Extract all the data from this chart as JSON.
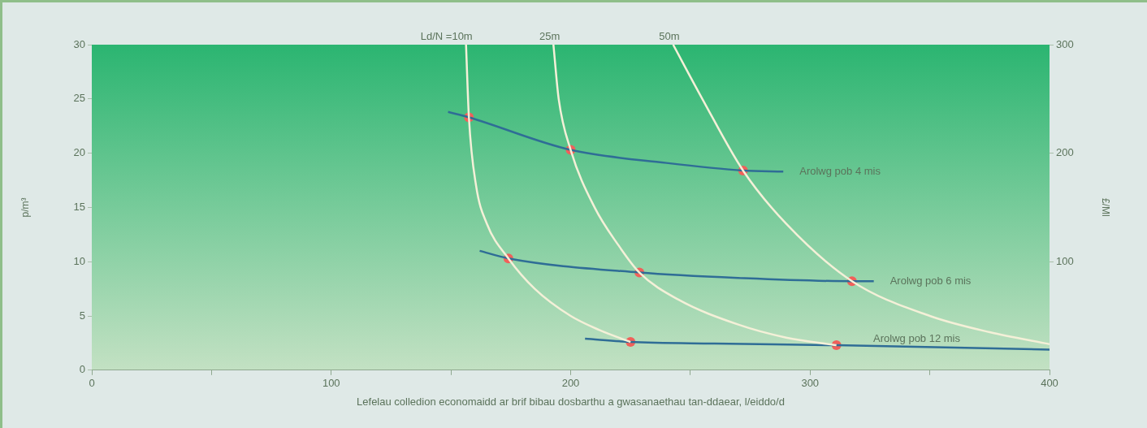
{
  "chart_data": {
    "type": "line",
    "xlabel": "Lefelau colledion economaidd ar brif bibau dosbarthu a gwasanaethau tan-ddaear, l/eiddo/d",
    "ylabel": "p/m³",
    "y2label": "£/Ml",
    "xlim": [
      0,
      400
    ],
    "xticks": [
      0,
      {
        "value": 50,
        "label": null
      },
      100,
      {
        "value": 150,
        "label": null
      },
      200,
      {
        "value": 250,
        "label": null
      },
      300,
      {
        "value": 350,
        "label": null
      },
      400
    ],
    "ylim": [
      0,
      30
    ],
    "yticks": [
      0,
      5,
      10,
      15,
      20,
      25,
      30
    ],
    "y2lim": [
      0,
      300
    ],
    "y2ticks": [
      100,
      200,
      300
    ],
    "grid": false,
    "series": [
      {
        "name": "Ld/N =10m",
        "type": "line",
        "color": "#f4f0d8",
        "x": [
          156.3,
          157.5,
          160.5,
          165,
          174,
          185,
          200,
          212,
          225
        ],
        "values": [
          30,
          23.3,
          17,
          13.5,
          10.3,
          7.5,
          5,
          3.7,
          2.6
        ]
      },
      {
        "name": "25m",
        "type": "line",
        "color": "#f4f0d8",
        "x": [
          192.8,
          195,
          200,
          210,
          220,
          228.7,
          245,
          270,
          290,
          311
        ],
        "values": [
          30,
          25,
          20.3,
          15,
          11.5,
          9,
          6.5,
          4.2,
          3,
          2.3
        ]
      },
      {
        "name": "50m",
        "type": "line",
        "color": "#f4f0d8",
        "x": [
          242.8,
          255,
          272,
          290,
          317.5,
          350,
          375,
          400
        ],
        "values": [
          30,
          25,
          18.4,
          13.5,
          8.2,
          5,
          3.5,
          2.4
        ]
      },
      {
        "name": "Arolwg pob 4 mis",
        "type": "line",
        "color": "#2f6d96",
        "x": [
          148.8,
          157.5,
          200,
          240,
          272,
          288.8
        ],
        "values": [
          23.8,
          23.3,
          20.3,
          19.1,
          18.4,
          18.3
        ]
      },
      {
        "name": "Arolwg pob 6 mis",
        "type": "line",
        "color": "#2f6d96",
        "x": [
          162,
          174,
          228.7,
          270,
          317.5,
          326.6
        ],
        "values": [
          11,
          10.3,
          9,
          8.5,
          8.2,
          8.2
        ]
      },
      {
        "name": "Arolwg pob 12 mis",
        "type": "line",
        "color": "#2f6d96",
        "x": [
          206,
          225,
          260,
          311,
          400
        ],
        "values": [
          2.9,
          2.6,
          2.45,
          2.3,
          1.9
        ]
      },
      {
        "type": "scatter",
        "marker": "circle",
        "color": "#f0605a",
        "x": [
          157.5,
          200,
          272,
          174,
          228.7,
          317.5,
          225,
          311
        ],
        "values": [
          23.3,
          20.3,
          18.4,
          10.3,
          9,
          8.2,
          2.6,
          2.3
        ]
      }
    ]
  }
}
